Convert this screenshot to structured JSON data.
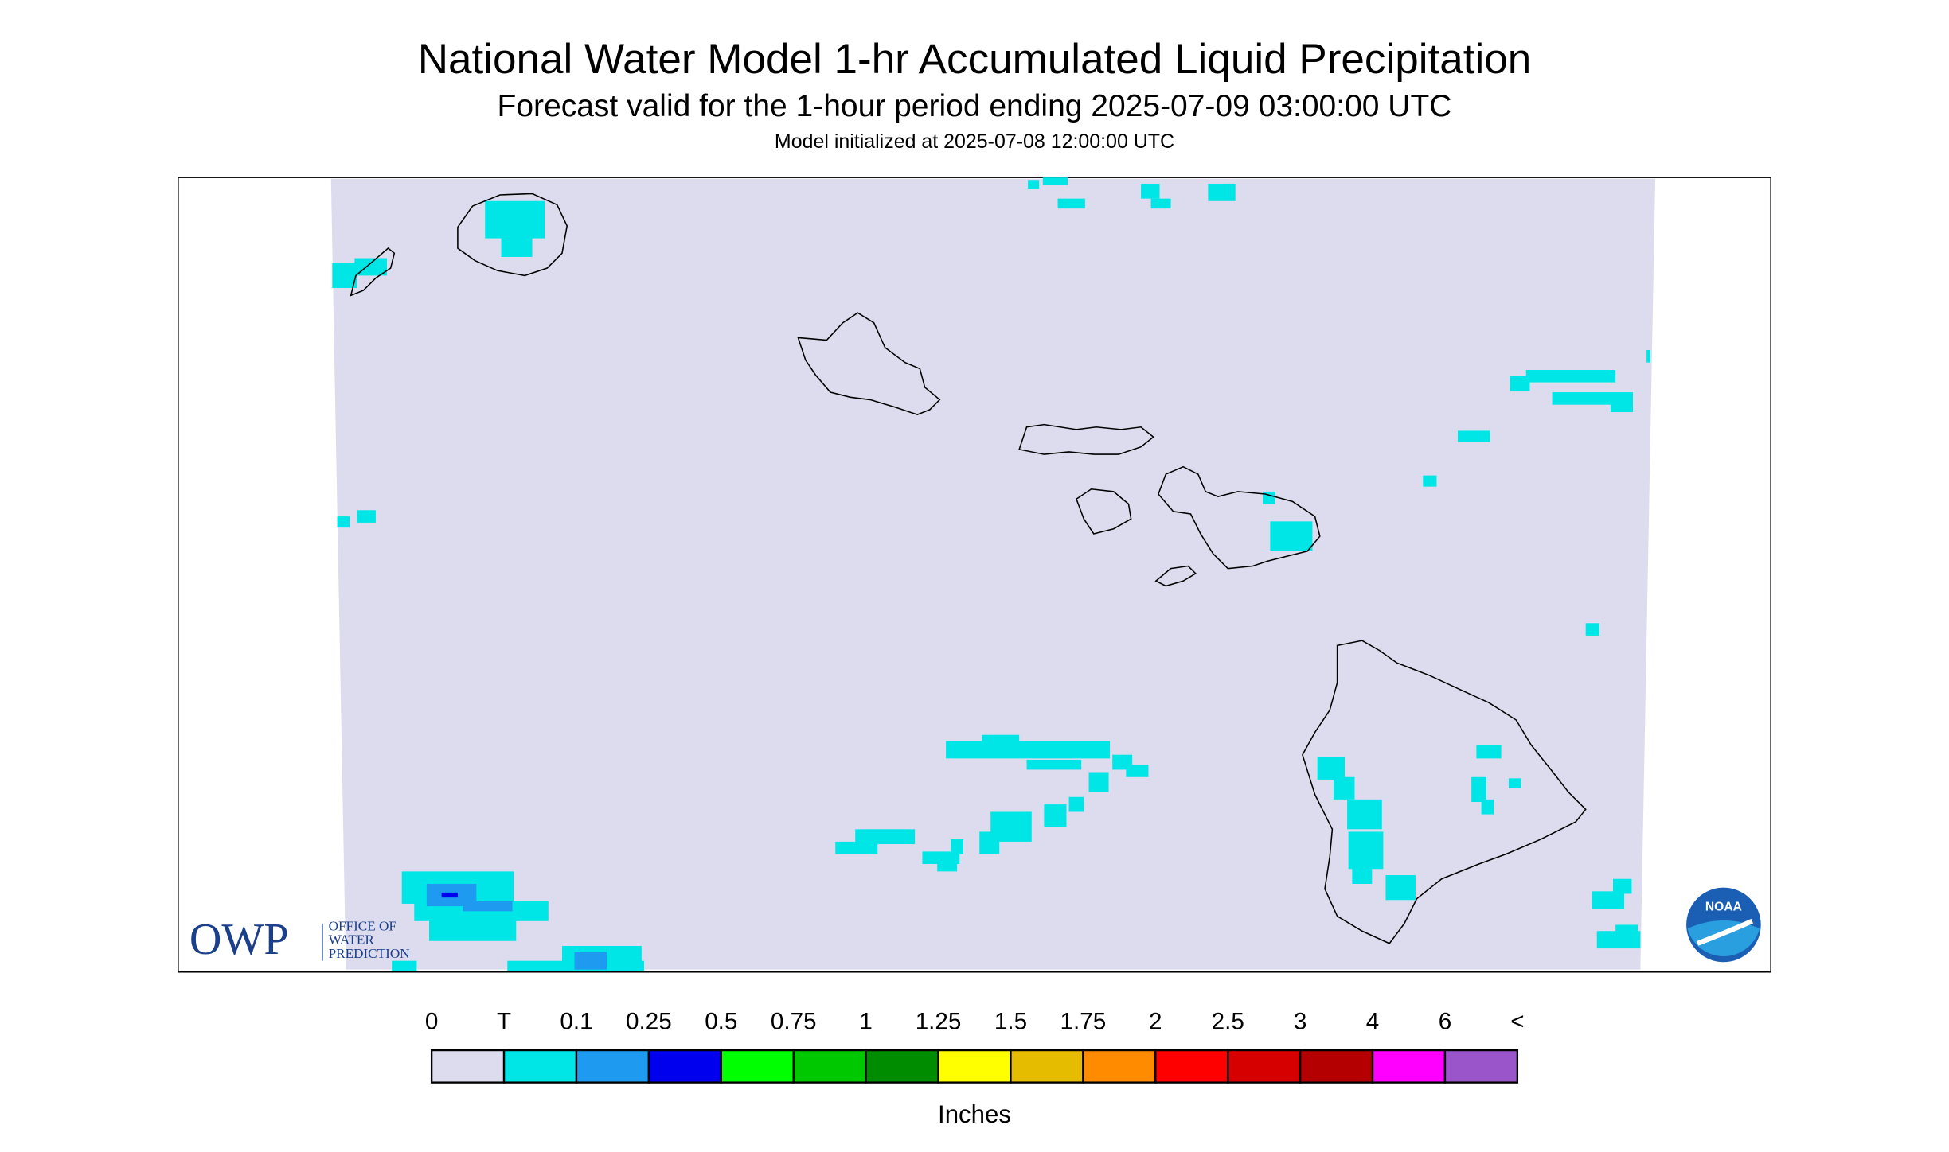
{
  "header": {
    "title": "National Water Model 1-hr Accumulated Liquid Precipitation",
    "subtitle": "Forecast valid for the 1-hour period ending 2025-07-09 03:00:00 UTC",
    "init": "Model initialized at 2025-07-08 12:00:00 UTC"
  },
  "logos": {
    "owp": "OWP",
    "owp_lines": [
      "OFFICE OF",
      "WATER",
      "PREDICTION"
    ],
    "noaa": "NOAA"
  },
  "legend": {
    "labels": [
      "0",
      "T",
      "0.1",
      "0.25",
      "0.5",
      "0.75",
      "1",
      "1.25",
      "1.5",
      "1.75",
      "2",
      "2.5",
      "3",
      "4",
      "6",
      "<"
    ],
    "colors": [
      "#dcdcee",
      "#00e5e5",
      "#1e9bf0",
      "#0000ee",
      "#00ff00",
      "#00c800",
      "#008c00",
      "#ffff00",
      "#e6bc00",
      "#ff8c00",
      "#ff0000",
      "#d60000",
      "#b40000",
      "#ff00ff",
      "#9955c9"
    ],
    "unit": "Inches"
  }
}
